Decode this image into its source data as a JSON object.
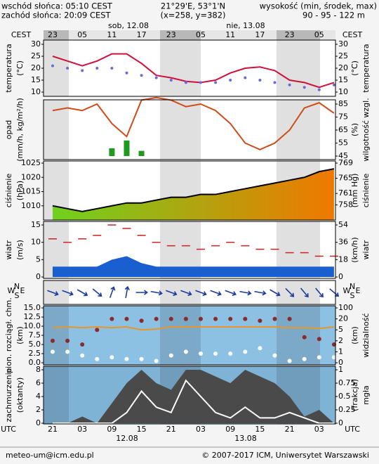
{
  "header": {
    "sunrise": "wschód słońca: 05:10 CEST",
    "sunset": "zachód słońca: 20:09 CEST",
    "coords": "21°29'E, 53°1'N",
    "grid": "(x=258, y=382)",
    "elevation_title": "wysokość (min, środek, max)",
    "elevation": "90 - 95 - 122 m",
    "top_axis": "CEST",
    "bottom_axis": "UTC",
    "dates_top": [
      "sob, 12.08",
      "nie, 13.08"
    ],
    "dates_bottom": [
      "12.08",
      "13.08"
    ]
  },
  "footer": {
    "email": "meteo-um@icm.edu.pl",
    "copyright": "© 2007-2017 ICM, Uniwersytet Warszawski"
  },
  "chart_data": [
    {
      "type": "line",
      "ylabel": [
        "temperatura",
        "(°C)"
      ],
      "y2label": [
        "(°C)",
        "temperatura"
      ],
      "top_categories": [
        "23",
        null,
        "05",
        null,
        "11",
        null,
        "17",
        null,
        "23",
        null,
        "05",
        null,
        "11",
        null,
        "17",
        null,
        "23",
        null,
        "05",
        null
      ],
      "ylim": [
        10,
        30
      ],
      "yticks": [
        10,
        15,
        20,
        25,
        30
      ],
      "y2lim": [
        10,
        30
      ],
      "y2ticks": [
        10,
        15,
        20,
        25,
        30
      ],
      "series": [
        {
          "color": "#d0103a",
          "style": "line",
          "values": [
            25,
            23,
            21,
            23,
            26,
            26,
            22,
            17,
            16,
            14.5,
            14,
            15,
            18,
            20,
            20.5,
            19,
            15,
            14,
            12,
            14
          ]
        },
        {
          "color": "#6a6ad8",
          "style": "dots",
          "values": [
            21,
            20,
            19,
            20,
            20,
            18,
            17,
            16,
            15,
            14,
            14,
            14,
            15,
            16,
            15,
            14,
            13,
            12,
            11,
            13
          ]
        }
      ]
    },
    {
      "type": "combo",
      "ylabel": [
        "opad",
        "(mm/h, kg/m²/h)"
      ],
      "y2label": [
        "(%)",
        "wilgotność wzgl."
      ],
      "ylim": [
        0,
        2
      ],
      "y2lim": [
        45,
        85
      ],
      "y2ticks": [
        45,
        55,
        65,
        75,
        85
      ],
      "series": [
        {
          "color": "#1f9a1f",
          "style": "bars",
          "values": [
            0,
            0,
            0,
            0,
            0.3,
            0.6,
            0.2,
            0,
            0,
            0,
            0,
            0,
            0,
            0,
            0,
            0,
            0,
            0,
            0,
            0
          ]
        },
        {
          "color": "#d04a1a",
          "style": "line",
          "axis": "y2",
          "values": [
            80,
            82,
            80,
            85,
            70,
            60,
            88,
            90,
            88,
            83,
            85,
            80,
            70,
            55,
            50,
            55,
            65,
            82,
            86,
            78
          ]
        }
      ]
    },
    {
      "type": "area",
      "ylabel": [
        "ciśnienie",
        "(hPa)"
      ],
      "y2label": [
        "(mm Hg)",
        "ciśnienie"
      ],
      "ylim": [
        1005,
        1025
      ],
      "yticks": [
        1010,
        1015,
        1020,
        1025
      ],
      "y2lim": [
        754,
        769
      ],
      "y2ticks": [
        758,
        761,
        765,
        769
      ],
      "series": [
        {
          "color": "#6fd21e",
          "color_end": "#f07800",
          "style": "area",
          "values": [
            1010,
            1009,
            1008,
            1009,
            1010,
            1011,
            1011,
            1012,
            1013,
            1013,
            1014,
            1014,
            1015,
            1016,
            1017,
            1018,
            1019,
            1020,
            1022,
            1023
          ]
        },
        {
          "color": "#000000",
          "style": "line",
          "values": [
            1010,
            1009,
            1008,
            1009,
            1010,
            1011,
            1011,
            1012,
            1013,
            1013,
            1014,
            1014,
            1015,
            1016,
            1017,
            1018,
            1019,
            1020,
            1022,
            1023
          ]
        }
      ]
    },
    {
      "type": "area",
      "ylabel": [
        "wiatr",
        "(m/s)"
      ],
      "y2label": [
        "(km/h)",
        "wiatr"
      ],
      "ylim": [
        0,
        15
      ],
      "yticks": [
        0,
        5,
        10,
        15
      ],
      "y2lim": [
        0,
        54
      ],
      "y2ticks": [
        0,
        18,
        36,
        54
      ],
      "series": [
        {
          "color": "#1a5fd0",
          "style": "area",
          "values": [
            3,
            3,
            3,
            3,
            5,
            6,
            4,
            3,
            3,
            3,
            3,
            3,
            3,
            3,
            3,
            3,
            3,
            3,
            3,
            3
          ]
        },
        {
          "color": "#d02020",
          "style": "dashes",
          "values": [
            11,
            10,
            11,
            12,
            15,
            14,
            12,
            10,
            9,
            9,
            8,
            9,
            10,
            9,
            8,
            8,
            7,
            7,
            6,
            6
          ]
        }
      ]
    },
    {
      "type": "vector",
      "compass": [
        "N",
        "W",
        "E",
        "S"
      ],
      "color": "#1a3aa0",
      "values": [
        110,
        110,
        120,
        130,
        20,
        10,
        90,
        100,
        110,
        110,
        110,
        110,
        110,
        100,
        100,
        120,
        135,
        140,
        140,
        130
      ]
    },
    {
      "type": "combo",
      "ylabel": [
        "pion. rozciągł. chm.",
        "(km)"
      ],
      "y2label": [
        "(km)",
        "widzialność"
      ],
      "ylim": [
        0,
        15
      ],
      "yticks": [
        {
          "value": 0,
          "label": "0.0"
        },
        2.5,
        {
          "value": 5,
          "label": "5.0"
        },
        7.5,
        {
          "value": 10,
          "label": "10.0"
        },
        12.5,
        {
          "value": 15,
          "label": "15.0"
        }
      ],
      "y2scale": "tick-spaced",
      "y2ticks": [
        0,
        1,
        2,
        5,
        20,
        100
      ],
      "series": [
        {
          "color": "#e8952a",
          "style": "line",
          "axis": "y2",
          "values": [
            8,
            9,
            8,
            9,
            8,
            9,
            5,
            6,
            9,
            9,
            9,
            9,
            9,
            9,
            9,
            9,
            8,
            8,
            7,
            9
          ]
        },
        {
          "color": "#8b2a2a",
          "style": "dots",
          "values": [
            6,
            6,
            5,
            9,
            12,
            12,
            11.5,
            12,
            12,
            12,
            12,
            12,
            12,
            12,
            11.5,
            12,
            12,
            7,
            6.5,
            5
          ]
        },
        {
          "color": "#ffffff",
          "style": "dots",
          "values": [
            3,
            3,
            2,
            1,
            1.5,
            1,
            1,
            0.5,
            2,
            3,
            2.5,
            2.5,
            2.5,
            3,
            4,
            2,
            0.5,
            1,
            1.5,
            1.5
          ]
        }
      ]
    },
    {
      "type": "area",
      "ylabel": [
        "zachmurzenie",
        "(oktanty)"
      ],
      "y2label": [
        "(frakcja)",
        "mgła"
      ],
      "categories": [
        "21",
        null,
        "03",
        null,
        "09",
        null,
        "15",
        null,
        "21",
        null,
        "03",
        null,
        "09",
        null,
        "15",
        null,
        "21",
        null,
        "03",
        null
      ],
      "ylim": [
        0,
        8
      ],
      "yticks": [
        0,
        2,
        4,
        6,
        8
      ],
      "y2lim": [
        0,
        1
      ],
      "y2ticks": [
        0,
        0.25,
        0.5,
        0.75,
        1
      ],
      "series": [
        {
          "color": "#4a4a4a",
          "style": "area",
          "values": [
            0,
            0,
            1,
            0,
            3,
            6,
            8,
            6,
            5,
            8,
            8,
            7,
            6,
            8,
            7,
            6,
            4,
            1,
            2,
            0
          ]
        },
        {
          "color": "#ffffff",
          "style": "line",
          "axis": "y2",
          "values": [
            0,
            0,
            0,
            0,
            0,
            0.2,
            0.6,
            0.3,
            0.2,
            0.8,
            0.5,
            0.2,
            0.1,
            0.3,
            0.1,
            0.1,
            0.2,
            0.1,
            0,
            0
          ]
        }
      ]
    }
  ]
}
